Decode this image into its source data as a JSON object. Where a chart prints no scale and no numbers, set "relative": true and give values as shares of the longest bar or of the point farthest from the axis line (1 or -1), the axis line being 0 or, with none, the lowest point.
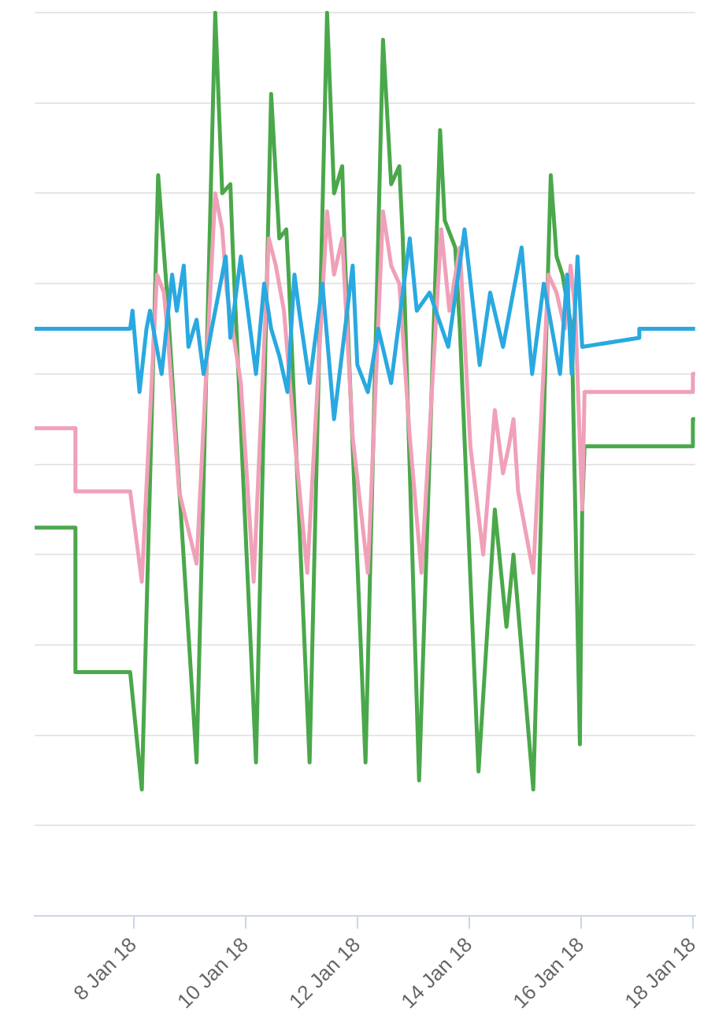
{
  "chart_data": {
    "type": "line",
    "relative": true,
    "grid": "y",
    "tick_labels": "x",
    "xlim": [
      "--01-06T05:30",
      "--01-18T01:00"
    ],
    "xticks": [
      {
        "value": "--01-08T00:00",
        "label": "8 Jan 18"
      },
      {
        "value": "--01-10T00:00",
        "label": "10 Jan 18"
      },
      {
        "value": "--01-12T00:00",
        "label": "12 Jan 18"
      },
      {
        "value": "--01-14T00:00",
        "label": "14 Jan 18"
      },
      {
        "value": "--01-16T00:00",
        "label": "16 Jan 18"
      },
      {
        "value": "--01-18T00:00",
        "label": "18 Jan 18"
      }
    ],
    "series": [
      {
        "color": "#29a9e0",
        "x": [
          "--01-06T05:30",
          "--01-07T22:30",
          "--01-07T23:30",
          "--01-08T02:30",
          "--01-08T05:30",
          "--01-08T07:00",
          "--01-08T12:00",
          "--01-08T16:30",
          "--01-08T18:30",
          "--01-08T21:30",
          "--01-08T23:30",
          "--01-09T03:00",
          "--01-09T06:00",
          "--01-09T09:30",
          "--01-09T15:30",
          "--01-09T17:30",
          "--01-09T22:00",
          "--01-10T01:30",
          "--01-10T04:30",
          "--01-10T08:00",
          "--01-10T11:00",
          "--01-10T14:30",
          "--01-10T18:00",
          "--01-10T21:00",
          "--01-10T23:00",
          "--01-11T03:30",
          "--01-11T09:00",
          "--01-11T14:00",
          "--01-11T22:00",
          "--01-12T00:00",
          "--01-12T04:30",
          "--01-12T09:00",
          "--01-12T14:30",
          "--01-12T22:30",
          "--01-13T01:30",
          "--01-13T07:00",
          "--01-13T15:00",
          "--01-13T22:00",
          "--01-14T04:30",
          "--01-14T09:00",
          "--01-14T14:30",
          "--01-14T22:30",
          "--01-15T03:00",
          "--01-15T08:00",
          "--01-15T15:00",
          "--01-15T18:00",
          "--01-15T20:00",
          "--01-15T22:30",
          "--01-16T00:30",
          "--01-17T01:00",
          "--01-17T01:00",
          "--01-18T01:00"
        ],
        "values": [
          0.65,
          0.65,
          0.67,
          0.58,
          0.65,
          0.67,
          0.6,
          0.71,
          0.67,
          0.72,
          0.63,
          0.66,
          0.6,
          0.65,
          0.73,
          0.64,
          0.73,
          0.66,
          0.6,
          0.7,
          0.65,
          0.62,
          0.58,
          0.71,
          0.67,
          0.59,
          0.7,
          0.55,
          0.72,
          0.61,
          0.58,
          0.65,
          0.59,
          0.75,
          0.67,
          0.69,
          0.63,
          0.76,
          0.61,
          0.69,
          0.63,
          0.74,
          0.6,
          0.7,
          0.6,
          0.71,
          0.6,
          0.73,
          0.63,
          0.64,
          0.65,
          0.65
        ]
      },
      {
        "color": "#f0a0b8",
        "x": [
          "--01-06T05:30",
          "--01-06T23:00",
          "--01-06T23:00",
          "--01-07T22:30",
          "--01-08T03:30",
          "--01-08T10:00",
          "--01-08T13:00",
          "--01-08T15:00",
          "--01-08T19:30",
          "--01-09T03:00",
          "--01-09T11:00",
          "--01-09T14:00",
          "--01-09T16:00",
          "--01-09T22:00",
          "--01-10T03:30",
          "--01-10T10:00",
          "--01-10T13:00",
          "--01-10T16:30",
          "--01-10T21:00",
          "--01-11T02:30",
          "--01-11T11:00",
          "--01-11T14:00",
          "--01-11T17:30",
          "--01-11T22:00",
          "--01-12T04:30",
          "--01-12T11:00",
          "--01-12T14:30",
          "--01-12T18:00",
          "--01-12T22:30",
          "--01-13T03:30",
          "--01-13T12:00",
          "--01-13T15:30",
          "--01-13T20:00",
          "--01-14T00:30",
          "--01-14T06:00",
          "--01-14T11:00",
          "--01-14T14:30",
          "--01-14T17:00",
          "--01-14T19:00",
          "--01-14T21:00",
          "--01-15T03:30",
          "--01-15T10:00",
          "--01-15T13:30",
          "--01-15T17:00",
          "--01-15T19:30",
          "--01-15T21:30",
          "--01-16T00:30",
          "--01-16T01:30",
          "--01-18T00:00",
          "--01-18T00:00",
          "--01-18T01:00"
        ],
        "values": [
          0.54,
          0.54,
          0.47,
          0.47,
          0.37,
          0.71,
          0.69,
          0.63,
          0.47,
          0.39,
          0.8,
          0.76,
          0.69,
          0.59,
          0.37,
          0.75,
          0.72,
          0.67,
          0.53,
          0.38,
          0.78,
          0.71,
          0.75,
          0.53,
          0.38,
          0.78,
          0.72,
          0.7,
          0.53,
          0.38,
          0.76,
          0.67,
          0.74,
          0.52,
          0.4,
          0.56,
          0.49,
          0.52,
          0.55,
          0.47,
          0.38,
          0.71,
          0.69,
          0.65,
          0.72,
          0.67,
          0.45,
          0.58,
          0.58,
          0.6,
          0.6
        ]
      },
      {
        "color": "#4aa84a",
        "x": [
          "--01-06T05:30",
          "--01-06T23:00",
          "--01-06T23:00",
          "--01-07T22:30",
          "--01-08T03:30",
          "--01-08T10:30",
          "--01-08T14:00",
          "--01-08T15:00",
          "--01-09T03:00",
          "--01-09T11:00",
          "--01-09T14:00",
          "--01-09T17:30",
          "--01-09T18:30",
          "--01-10T04:30",
          "--01-10T11:00",
          "--01-10T14:30",
          "--01-10T17:30",
          "--01-10T18:30",
          "--01-11T03:30",
          "--01-11T11:00",
          "--01-11T14:00",
          "--01-11T17:30",
          "--01-11T18:30",
          "--01-12T03:30",
          "--01-12T11:00",
          "--01-12T14:30",
          "--01-12T18:00",
          "--01-12T19:30",
          "--01-13T02:30",
          "--01-13T11:30",
          "--01-13T13:30",
          "--01-13T18:00",
          "--01-13T20:00",
          "--01-14T04:00",
          "--01-14T11:00",
          "--01-14T16:00",
          "--01-14T19:00",
          "--01-15T03:30",
          "--01-15T11:00",
          "--01-15T13:30",
          "--01-15T16:00",
          "--01-15T20:00",
          "--01-15T23:30",
          "--01-16T00:30",
          "--01-16T01:30",
          "--01-18T00:00",
          "--01-18T00:00",
          "--01-18T01:00"
        ],
        "values": [
          0.43,
          0.43,
          0.27,
          0.27,
          0.14,
          0.82,
          0.7,
          0.66,
          0.17,
          1.0,
          0.8,
          0.81,
          0.74,
          0.17,
          0.91,
          0.75,
          0.76,
          0.71,
          0.17,
          1.0,
          0.8,
          0.83,
          0.74,
          0.17,
          0.97,
          0.81,
          0.83,
          0.75,
          0.15,
          0.87,
          0.77,
          0.74,
          0.65,
          0.16,
          0.45,
          0.32,
          0.4,
          0.14,
          0.82,
          0.73,
          0.71,
          0.65,
          0.19,
          0.45,
          0.52,
          0.52,
          0.55,
          0.55
        ]
      }
    ]
  }
}
